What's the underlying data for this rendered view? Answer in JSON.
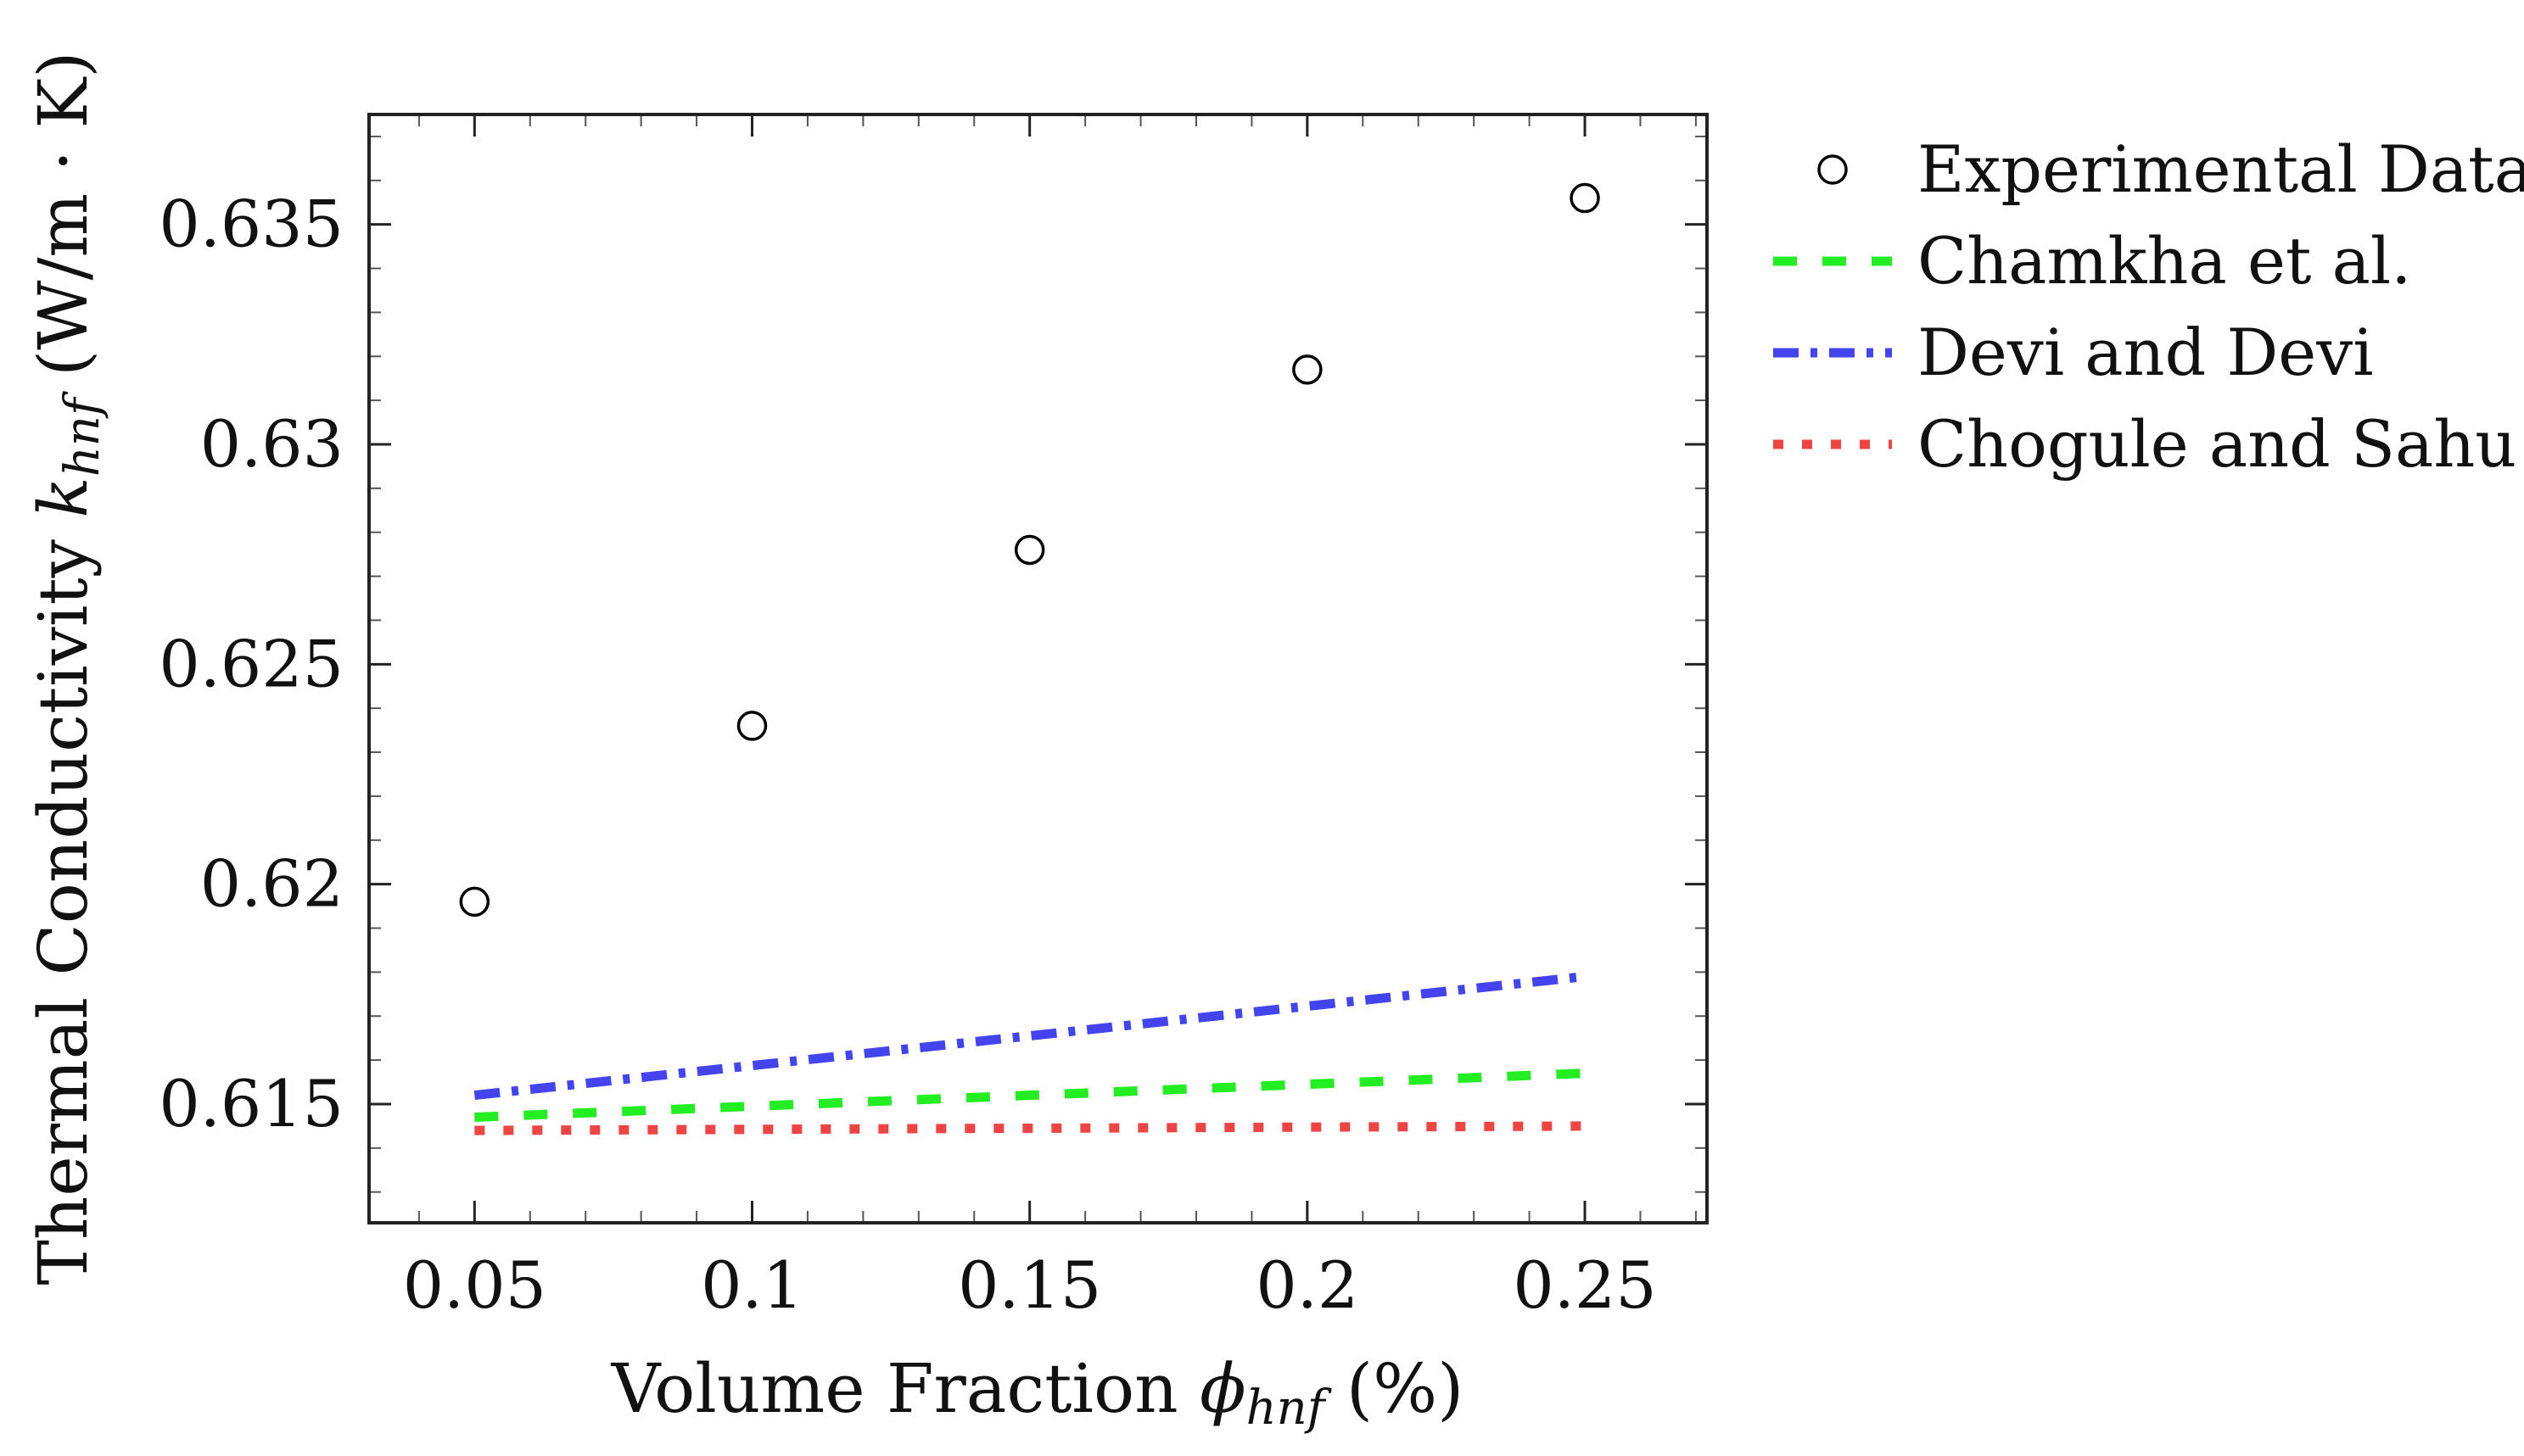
{
  "chart_data": {
    "type": "line",
    "title": "",
    "xlabel": {
      "text": "Volume Fraction ",
      "symbol": "ϕ",
      "sub": "hnf",
      "suffix": " (%)"
    },
    "ylabel": {
      "text": "Thermal Conductivity ",
      "symbol": "k",
      "sub": "hnf",
      "suffix": " (W/m · K)"
    },
    "xlim": [
      0.031,
      0.272
    ],
    "ylim": [
      0.6123,
      0.6375
    ],
    "xticks": [
      0.05,
      0.1,
      0.15,
      0.2,
      0.25
    ],
    "xtick_labels": [
      "0.05",
      "0.1",
      "0.15",
      "0.2",
      "0.25"
    ],
    "yticks": [
      0.615,
      0.62,
      0.625,
      0.63,
      0.635
    ],
    "ytick_labels": [
      "0.615",
      "0.62",
      "0.625",
      "0.63",
      "0.635"
    ],
    "grid": false,
    "legend_position": "outside-right",
    "series": [
      {
        "name": "Experimental Data",
        "style": "markers-circle",
        "color": "#000000",
        "x": [
          0.05,
          0.1,
          0.15,
          0.2,
          0.25
        ],
        "y": [
          0.6196,
          0.6236,
          0.6276,
          0.6317,
          0.6356
        ]
      },
      {
        "name": "Chamkha et al.",
        "style": "dashed",
        "color": "#22ee22",
        "x": [
          0.05,
          0.25
        ],
        "y": [
          0.6147,
          0.6157
        ]
      },
      {
        "name": "Devi and Devi",
        "style": "dashdot",
        "color": "#4444ee",
        "x": [
          0.05,
          0.25
        ],
        "y": [
          0.6152,
          0.6179
        ]
      },
      {
        "name": "Chogule and Sahu",
        "style": "dotted",
        "color": "#ee4444",
        "x": [
          0.05,
          0.25
        ],
        "y": [
          0.6144,
          0.6145
        ]
      }
    ]
  }
}
